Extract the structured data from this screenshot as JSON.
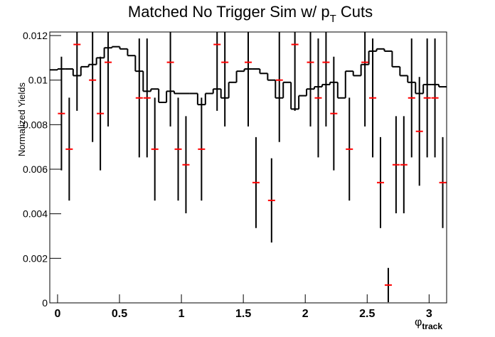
{
  "chart_data": {
    "type": "histogram",
    "title": [
      "Matched No Trigger Sim w/ p",
      "T",
      " Cuts"
    ],
    "xlabel": [
      "φ",
      "track"
    ],
    "ylabel": "Normalized Yields",
    "xlim": [
      -0.0628,
      3.1416
    ],
    "ylim": [
      0,
      0.01216
    ],
    "xticks": [
      0,
      0.5,
      1,
      1.5,
      2,
      2.5,
      3
    ],
    "yticks": [
      0,
      0.002,
      0.004,
      0.006,
      0.008,
      0.01,
      0.012
    ],
    "histogram": {
      "color": "#000000",
      "bins": [
        -0.0628,
        0,
        0.0628,
        0.1257,
        0.1885,
        0.2513,
        0.3142,
        0.377,
        0.4398,
        0.5027,
        0.5655,
        0.6283,
        0.6912,
        0.754,
        0.8168,
        0.8796,
        0.9425,
        1.0053,
        1.0681,
        1.131,
        1.1938,
        1.2566,
        1.3195,
        1.3823,
        1.4451,
        1.508,
        1.5708,
        1.6336,
        1.6965,
        1.7593,
        1.8221,
        1.885,
        1.9478,
        2.0106,
        2.0735,
        2.1363,
        2.1991,
        2.2619,
        2.3248,
        2.3876,
        2.4504,
        2.5133,
        2.5761,
        2.6389,
        2.7018,
        2.7646,
        2.8274,
        2.8903,
        2.9531,
        3.0159,
        3.0788,
        3.1416
      ],
      "values": [
        0.01046,
        0.0105,
        0.0105,
        0.0102,
        0.0106,
        0.0107,
        0.011,
        0.01145,
        0.0115,
        0.0114,
        0.0111,
        0.0104,
        0.0095,
        0.0096,
        0.009,
        0.0095,
        0.0094,
        0.0094,
        0.0094,
        0.0089,
        0.0094,
        0.0096,
        0.0092,
        0.0099,
        0.0104,
        0.0105,
        0.0105,
        0.0103,
        0.01,
        0.0092,
        0.0099,
        0.0087,
        0.0093,
        0.0096,
        0.0097,
        0.0098,
        0.0099,
        0.0092,
        0.0104,
        0.0102,
        0.0107,
        0.0113,
        0.0114,
        0.0113,
        0.0106,
        0.0102,
        0.0099,
        0.0094,
        0.0098,
        0.0098,
        0.0097
      ]
    },
    "points": {
      "color": "#ff0000",
      "error_color": "#000000",
      "x": [
        0.0314,
        0.0942,
        0.1571,
        0.2827,
        0.3456,
        0.4084,
        0.6597,
        0.7226,
        0.7854,
        0.9111,
        0.9739,
        1.0367,
        1.1624,
        1.2881,
        1.3509,
        1.5394,
        1.6022,
        1.7279,
        1.7907,
        1.9164,
        2.042,
        2.1049,
        2.1677,
        2.2305,
        2.3562,
        2.4819,
        2.5447,
        2.6075,
        2.6704,
        2.7332,
        2.796,
        2.8588,
        2.9217,
        2.9845,
        3.0473,
        3.1102
      ],
      "values": [
        0.0085,
        0.0069,
        0.0116,
        0.01,
        0.0085,
        0.0108,
        0.0092,
        0.0092,
        0.0069,
        0.0108,
        0.0069,
        0.0062,
        0.0069,
        0.0116,
        0.0108,
        0.0108,
        0.0054,
        0.0046,
        0.01,
        0.0116,
        0.0108,
        0.0092,
        0.0108,
        0.0085,
        0.0069,
        0.0108,
        0.0092,
        0.0054,
        0.0008,
        0.0062,
        0.0062,
        0.0092,
        0.0077,
        0.0092,
        0.0092,
        0.0054
      ],
      "errors": [
        0.00255,
        0.00231,
        0.00298,
        0.00278,
        0.00255,
        0.00288,
        0.00267,
        0.00267,
        0.00231,
        0.00288,
        0.00231,
        0.00218,
        0.00231,
        0.00298,
        0.00288,
        0.00288,
        0.00204,
        0.00189,
        0.00278,
        0.00298,
        0.00288,
        0.00267,
        0.00288,
        0.00255,
        0.00231,
        0.00288,
        0.00267,
        0.00204,
        0.00077,
        0.00218,
        0.00218,
        0.00267,
        0.00244,
        0.00267,
        0.00267,
        0.00204
      ]
    }
  }
}
